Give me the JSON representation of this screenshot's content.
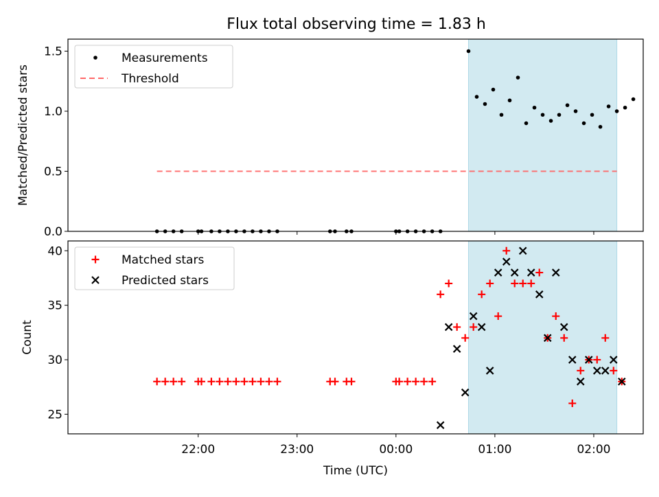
{
  "title": "Flux total observing time = 1.83 h",
  "chart_data": [
    {
      "type": "scatter",
      "ylabel": "Matched/Predicted stars",
      "xlabel": "",
      "ylim": [
        0,
        1.6
      ],
      "yticks": [
        "0.0",
        "0.5",
        "1.0",
        "1.5"
      ],
      "x_axis": "time (UTC), same axis as lower panel, tick labels hidden",
      "shaded_interval": {
        "start": "00:44",
        "end": "02:14",
        "color": "#add8e6"
      },
      "legend": {
        "placement": "upper-left",
        "entries": [
          "Measurements",
          "Threshold"
        ]
      },
      "threshold": {
        "name": "Threshold",
        "value": 0.5,
        "x_start": "21:35",
        "x_end": "02:14",
        "color": "#ff6666",
        "style": "dashed"
      },
      "series": [
        {
          "name": "Measurements",
          "marker": "dot",
          "color": "#000000",
          "x": [
            "21:35",
            "21:40",
            "21:45",
            "21:50",
            "22:00",
            "22:02",
            "22:08",
            "22:13",
            "22:18",
            "22:23",
            "22:28",
            "22:33",
            "22:38",
            "22:43",
            "22:48",
            "23:20",
            "23:23",
            "23:30",
            "23:33",
            "00:00",
            "00:02",
            "00:07",
            "00:12",
            "00:17",
            "00:22",
            "00:27",
            "00:44",
            "00:49",
            "00:54",
            "00:59",
            "01:04",
            "01:09",
            "01:14",
            "01:19",
            "01:24",
            "01:29",
            "01:34",
            "01:39",
            "01:44",
            "01:49",
            "01:54",
            "01:59",
            "02:04",
            "02:09",
            "02:14",
            "02:19",
            "02:24"
          ],
          "values": [
            0,
            0,
            0,
            0,
            0,
            0,
            0,
            0,
            0,
            0,
            0,
            0,
            0,
            0,
            0,
            0,
            0,
            0,
            0,
            0,
            0,
            0,
            0,
            0,
            0,
            0,
            1.5,
            1.12,
            1.06,
            1.18,
            0.97,
            1.09,
            1.28,
            0.9,
            1.03,
            0.97,
            0.92,
            0.97,
            1.05,
            1.0,
            0.9,
            0.97,
            0.87,
            1.04,
            1.0,
            1.03,
            1.1
          ]
        }
      ]
    },
    {
      "type": "scatter",
      "ylabel": "Count",
      "xlabel": "Time (UTC)",
      "ylim": [
        23.2,
        40.9
      ],
      "yticks": [
        "25",
        "30",
        "35",
        "40"
      ],
      "xticks": [
        "22:00",
        "23:00",
        "00:00",
        "01:00",
        "02:00"
      ],
      "shaded_interval": {
        "start": "00:44",
        "end": "02:14",
        "color": "#add8e6"
      },
      "legend": {
        "placement": "upper-left",
        "entries": [
          "Matched stars",
          "Predicted stars"
        ]
      },
      "series": [
        {
          "name": "Matched stars",
          "marker": "plus",
          "color": "#ff0000",
          "points": [
            [
              "21:35",
              28
            ],
            [
              "21:40",
              28
            ],
            [
              "21:45",
              28
            ],
            [
              "21:50",
              28
            ],
            [
              "22:00",
              28
            ],
            [
              "22:02",
              28
            ],
            [
              "22:08",
              28
            ],
            [
              "22:13",
              28
            ],
            [
              "22:18",
              28
            ],
            [
              "22:23",
              28
            ],
            [
              "22:28",
              28
            ],
            [
              "22:33",
              28
            ],
            [
              "22:38",
              28
            ],
            [
              "22:43",
              28
            ],
            [
              "22:48",
              28
            ],
            [
              "23:20",
              28
            ],
            [
              "23:23",
              28
            ],
            [
              "23:30",
              28
            ],
            [
              "23:33",
              28
            ],
            [
              "00:00",
              28
            ],
            [
              "00:02",
              28
            ],
            [
              "00:07",
              28
            ],
            [
              "00:12",
              28
            ],
            [
              "00:17",
              28
            ],
            [
              "00:22",
              28
            ],
            [
              "00:27",
              36
            ],
            [
              "00:32",
              37
            ],
            [
              "00:37",
              33
            ],
            [
              "00:42",
              32
            ],
            [
              "00:47",
              33
            ],
            [
              "00:52",
              36
            ],
            [
              "00:57",
              37
            ],
            [
              "01:02",
              34
            ],
            [
              "01:07",
              40
            ],
            [
              "01:12",
              37
            ],
            [
              "01:17",
              37
            ],
            [
              "01:22",
              37
            ],
            [
              "01:27",
              38
            ],
            [
              "01:32",
              32
            ],
            [
              "01:37",
              34
            ],
            [
              "01:42",
              32
            ],
            [
              "01:47",
              26
            ],
            [
              "01:52",
              29
            ],
            [
              "01:57",
              30
            ],
            [
              "02:02",
              30
            ],
            [
              "02:07",
              32
            ],
            [
              "02:12",
              29
            ],
            [
              "02:17",
              28
            ]
          ]
        },
        {
          "name": "Predicted stars",
          "marker": "x",
          "color": "#000000",
          "points": [
            [
              "00:27",
              24
            ],
            [
              "00:32",
              33
            ],
            [
              "00:37",
              31
            ],
            [
              "00:42",
              27
            ],
            [
              "00:47",
              34
            ],
            [
              "00:52",
              33
            ],
            [
              "00:57",
              29
            ],
            [
              "01:02",
              38
            ],
            [
              "01:07",
              39
            ],
            [
              "01:12",
              38
            ],
            [
              "01:17",
              40
            ],
            [
              "01:22",
              38
            ],
            [
              "01:27",
              36
            ],
            [
              "01:32",
              32
            ],
            [
              "01:37",
              38
            ],
            [
              "01:42",
              33
            ],
            [
              "01:47",
              30
            ],
            [
              "01:52",
              28
            ],
            [
              "01:57",
              30
            ],
            [
              "02:02",
              29
            ],
            [
              "02:07",
              29
            ],
            [
              "02:12",
              30
            ],
            [
              "02:17",
              28
            ]
          ]
        }
      ]
    }
  ]
}
